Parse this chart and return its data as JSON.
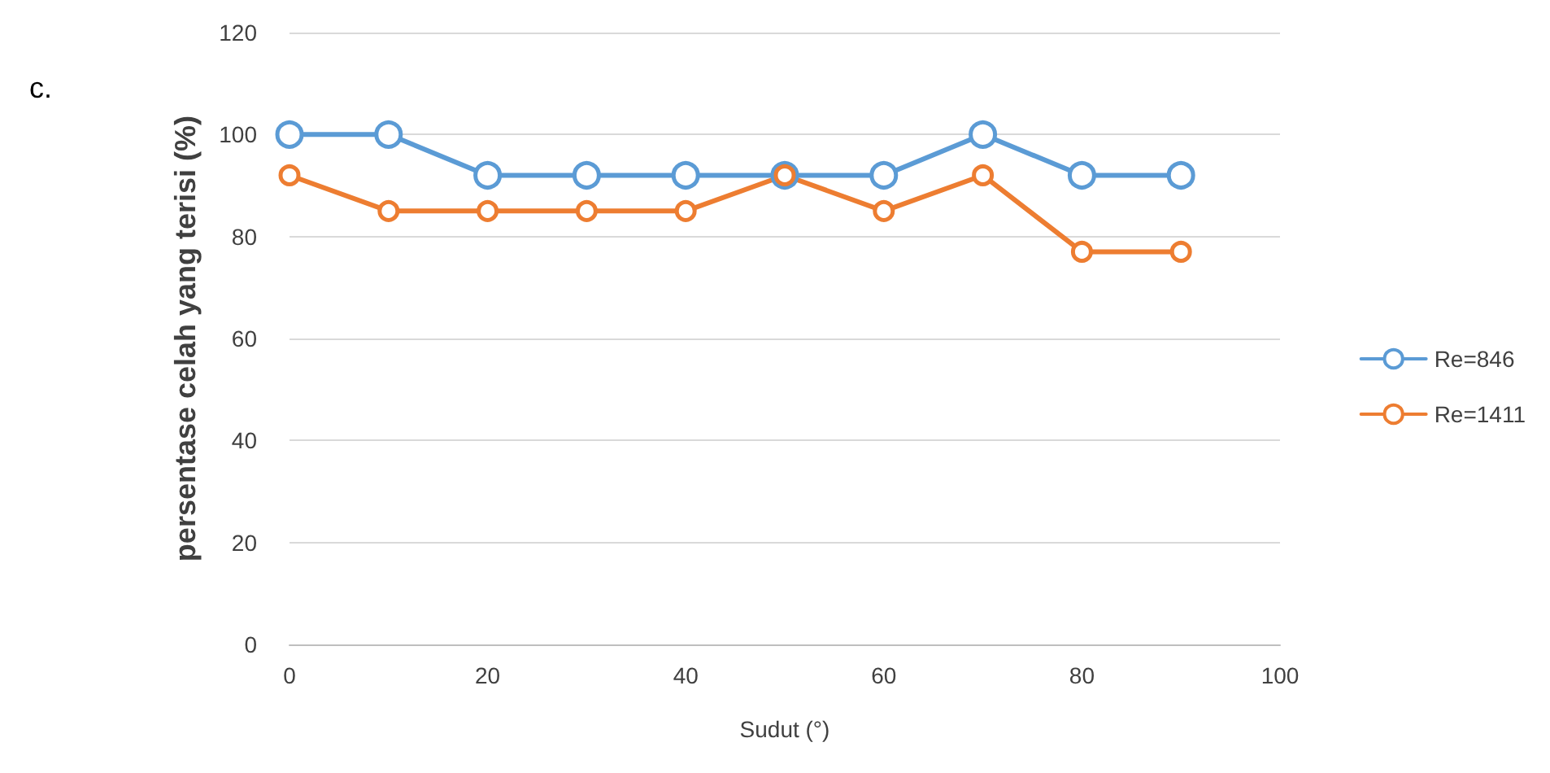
{
  "chart_data": {
    "type": "line",
    "xlabel": "Sudut (°)",
    "ylabel": "persentase celah yang terisi (%)",
    "annotations": [
      "c."
    ],
    "x": [
      0,
      10,
      20,
      30,
      40,
      50,
      60,
      70,
      80,
      90
    ],
    "series": [
      {
        "name": "Re=846",
        "color": "#5b9bd5",
        "values": [
          100,
          100,
          92,
          92,
          92,
          92,
          92,
          100,
          92,
          92
        ]
      },
      {
        "name": "Re=1411",
        "color": "#ed7d31",
        "values": [
          92,
          85,
          85,
          85,
          85,
          92,
          85,
          92,
          77,
          77
        ]
      }
    ],
    "xlim": [
      0,
      100
    ],
    "xticks": [
      0,
      20,
      40,
      60,
      80,
      100
    ],
    "ylim": [
      0,
      120
    ],
    "yticks": [
      0,
      20,
      40,
      60,
      80,
      100,
      120
    ],
    "grid": "y",
    "legend": "right",
    "marker": "circle",
    "line_style": "solid"
  }
}
